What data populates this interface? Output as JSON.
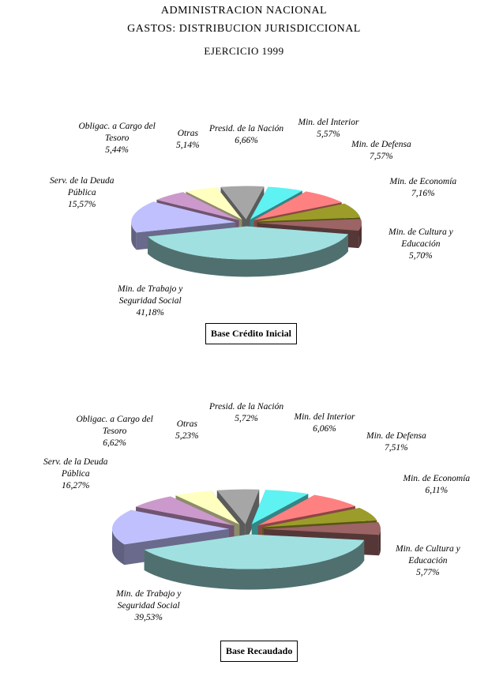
{
  "header": {
    "line1": "ADMINISTRACION NACIONAL",
    "line2": "GASTOS: DISTRIBUCION JURISDICCIONAL",
    "line3": "EJERCICIO 1999"
  },
  "colors": {
    "presid": "#a6a6a6",
    "interior": "#5ff2f2",
    "defensa": "#ff8080",
    "economia": "#9c9c2a",
    "cultura": "#9c6464",
    "trabajo": "#a0e0e0",
    "deuda": "#c0c0ff",
    "obligac": "#cc99cc",
    "otras": "#ffffc0"
  },
  "chart_data": [
    {
      "type": "pie",
      "title": "Base Crédito Inicial",
      "slices": [
        {
          "key": "presid",
          "label_lines": [
            "Presid. de la Nación"
          ],
          "value_text": "6,66%",
          "value": 6.66
        },
        {
          "key": "interior",
          "label_lines": [
            "Min. del Interior"
          ],
          "value_text": "5,57%",
          "value": 5.57
        },
        {
          "key": "defensa",
          "label_lines": [
            "Min. de Defensa"
          ],
          "value_text": "7,57%",
          "value": 7.57
        },
        {
          "key": "economia",
          "label_lines": [
            "Min. de Economía"
          ],
          "value_text": "7,16%",
          "value": 7.16
        },
        {
          "key": "cultura",
          "label_lines": [
            "Min. de Cultura y",
            "Educación"
          ],
          "value_text": "5,70%",
          "value": 5.7
        },
        {
          "key": "trabajo",
          "label_lines": [
            "Min. de Trabajo y",
            "Seguridad Social"
          ],
          "value_text": "41,18%",
          "value": 41.18
        },
        {
          "key": "deuda",
          "label_lines": [
            "Serv. de la Deuda",
            "Pública"
          ],
          "value_text": "15,57%",
          "value": 15.57
        },
        {
          "key": "obligac",
          "label_lines": [
            "Obligac. a Cargo del",
            "Tesoro"
          ],
          "value_text": "5,44%",
          "value": 5.44
        },
        {
          "key": "otras",
          "label_lines": [
            "Otras"
          ],
          "value_text": "5,14%",
          "value": 5.14
        }
      ]
    },
    {
      "type": "pie",
      "title": "Base Recaudado",
      "slices": [
        {
          "key": "presid",
          "label_lines": [
            "Presid. de la Nación"
          ],
          "value_text": "5,72%",
          "value": 5.72
        },
        {
          "key": "interior",
          "label_lines": [
            "Min. del Interior"
          ],
          "value_text": "6,06%",
          "value": 6.06
        },
        {
          "key": "defensa",
          "label_lines": [
            "Min. de Defensa"
          ],
          "value_text": "7,51%",
          "value": 7.51
        },
        {
          "key": "economia",
          "label_lines": [
            "Min. de Economía"
          ],
          "value_text": "6,11%",
          "value": 6.11
        },
        {
          "key": "cultura",
          "label_lines": [
            "Min. de Cultura y",
            "Educación"
          ],
          "value_text": "5,77%",
          "value": 5.77
        },
        {
          "key": "trabajo",
          "label_lines": [
            "Min. de Trabajo y",
            "Seguridad Social"
          ],
          "value_text": "39,53%",
          "value": 39.53
        },
        {
          "key": "deuda",
          "label_lines": [
            "Serv. de la Deuda",
            "Pública"
          ],
          "value_text": "16,27%",
          "value": 16.27
        },
        {
          "key": "obligac",
          "label_lines": [
            "Obligac. a Cargo del",
            "Tesoro"
          ],
          "value_text": "6,62%",
          "value": 6.62
        },
        {
          "key": "otras",
          "label_lines": [
            "Otras"
          ],
          "value_text": "5,23%",
          "value": 5.23
        }
      ]
    }
  ]
}
